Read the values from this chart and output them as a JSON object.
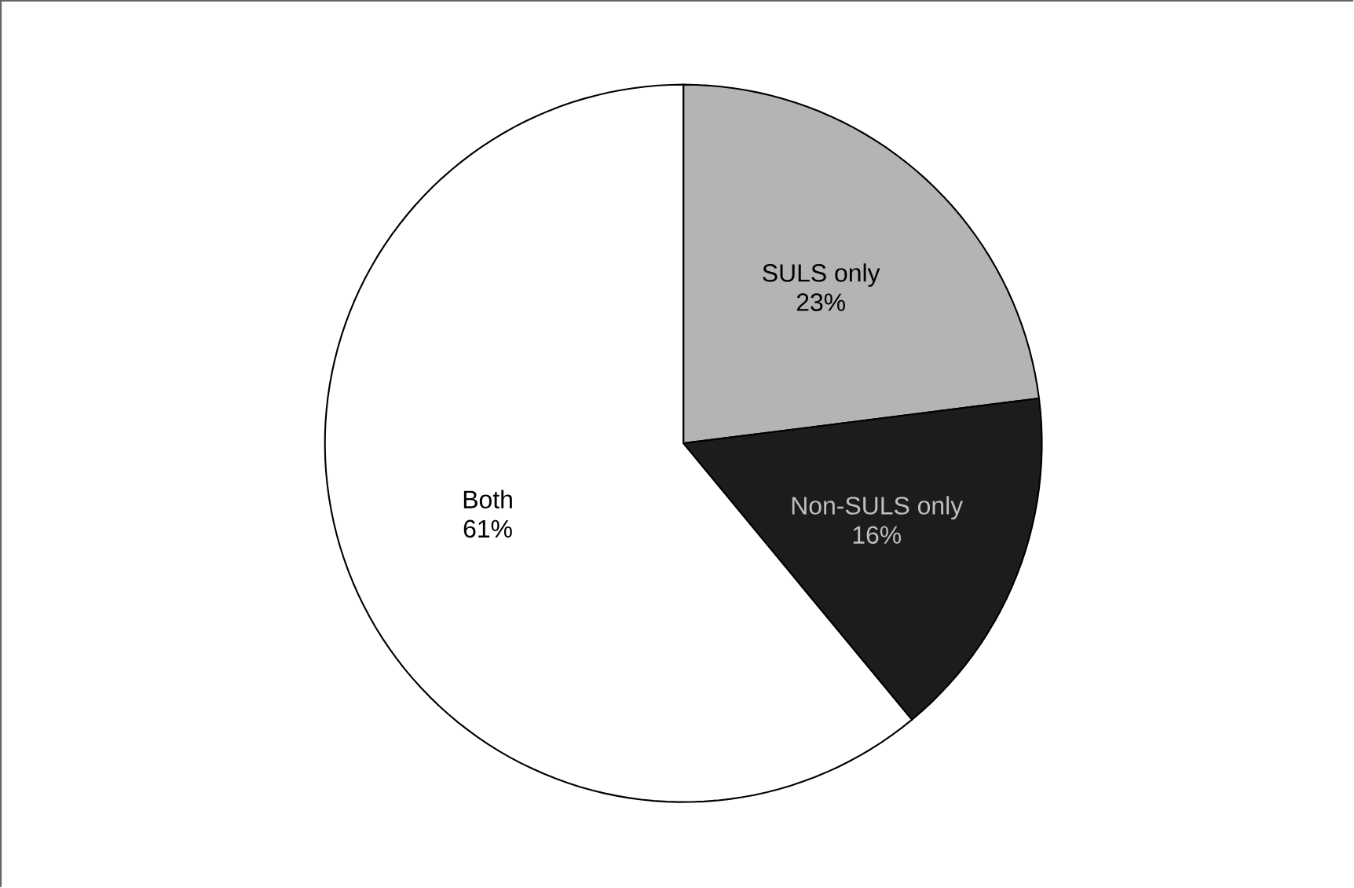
{
  "chart_data": {
    "type": "pie",
    "categories": [
      "SULS only",
      "Non-SULS only",
      "Both"
    ],
    "values": [
      23,
      16,
      61
    ],
    "value_labels": [
      "23%",
      "16%",
      "61%"
    ],
    "colors": [
      "#b4b4b4",
      "#1c1c1c",
      "#ffffff"
    ]
  }
}
